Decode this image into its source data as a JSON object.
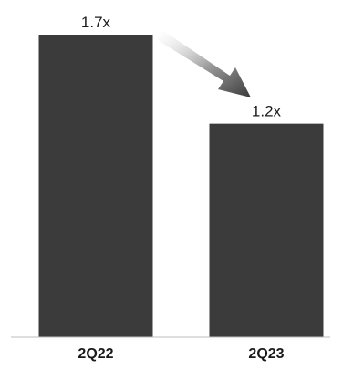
{
  "chart_data": {
    "type": "bar",
    "title": "",
    "categories": [
      "2Q22",
      "2Q23"
    ],
    "values": [
      1.7,
      1.2
    ],
    "data_labels": [
      "1.7x",
      "1.2x"
    ],
    "ylim": [
      0,
      1.85
    ],
    "xlabel": "",
    "ylabel": "",
    "grid": false,
    "bar_color": "#3b3b3b",
    "annotation": "gray arrow from 1.7x toward 1.2x indicating decrease"
  }
}
